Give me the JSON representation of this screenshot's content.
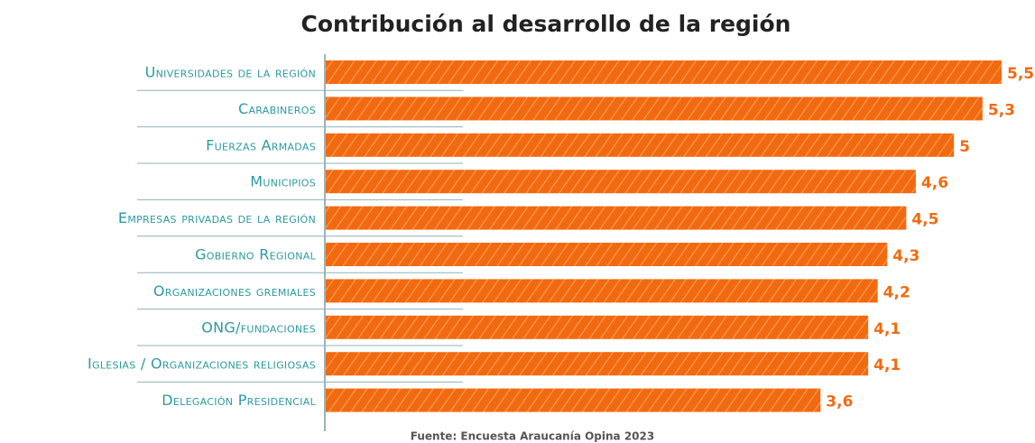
{
  "chart_data": {
    "type": "bar",
    "orientation": "horizontal",
    "title": "Contribución al desarrollo de la región",
    "source": "Fuente: Encuesta Araucanía Opina 2023",
    "categories": [
      "Universidades de la región",
      "Carabineros",
      "Fuerzas Armadas",
      "Municipios",
      "Empresas privadas de la región",
      "Gobierno Regional",
      "Organizaciones gremiales",
      "ONG/fundaciones",
      "Iglesias / Organizaciones religiosas",
      "Delegación Presidencial"
    ],
    "values": [
      5.5,
      5.3,
      5,
      4.6,
      4.5,
      4.3,
      4.2,
      4.1,
      4.1,
      3.6
    ],
    "value_labels": [
      "5,5",
      "5,3",
      "5",
      "4,6",
      "4,5",
      "4,3",
      "4,2",
      "4,1",
      "4,1",
      "3,6"
    ],
    "color": "#f26a10",
    "xlim": [
      -1.6,
      5.5
    ]
  }
}
